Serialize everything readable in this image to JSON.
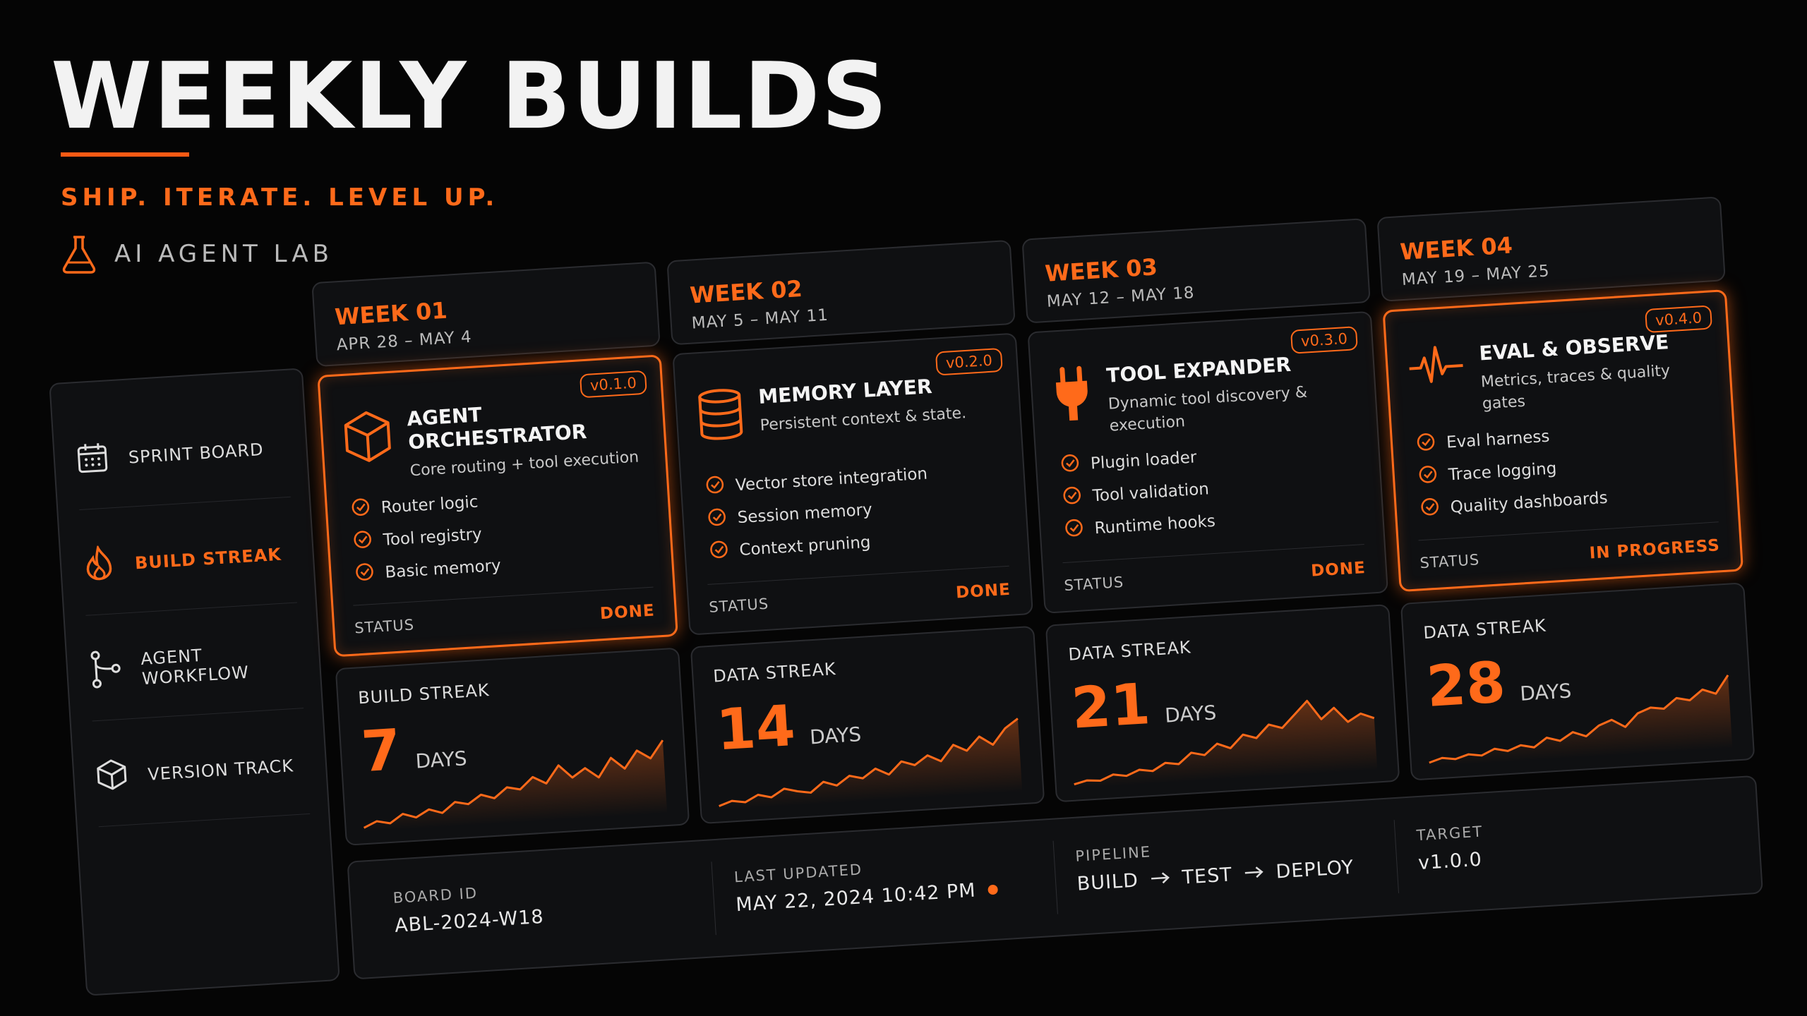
{
  "header": {
    "title": "WEEKLY BUILDS",
    "tagline": "SHIP. ITERATE. LEVEL UP.",
    "lab": "AI AGENT LAB"
  },
  "sidebar": {
    "items": [
      "SPRINT BOARD",
      "BUILD STREAK",
      "AGENT WORKFLOW",
      "VERSION TRACK"
    ],
    "active": 1
  },
  "weeks": [
    {
      "week": "WEEK 01",
      "dates": "APR 28 – MAY 4",
      "version": "v0.1.0",
      "title": "AGENT ORCHESTRATOR",
      "subtitle": "Core routing + tool execution",
      "checklist": [
        "Router logic",
        "Tool registry",
        "Basic memory"
      ],
      "status_label": "STATUS",
      "status": "DONE",
      "active": true,
      "streak_label": "BUILD STREAK",
      "streak_value": 7,
      "streak_unit": "DAYS",
      "trend": [
        10,
        14,
        12,
        18,
        15,
        20,
        17,
        24,
        22,
        28,
        25,
        32,
        30,
        38,
        33,
        45,
        36,
        42,
        35,
        48,
        40,
        52,
        46,
        58
      ]
    },
    {
      "week": "WEEK 02",
      "dates": "MAY 5 – MAY 11",
      "version": "v0.2.0",
      "title": "MEMORY LAYER",
      "subtitle": "Persistent context & state.",
      "checklist": [
        "Vector store integration",
        "Session memory",
        "Context pruning"
      ],
      "status_label": "STATUS",
      "status": "DONE",
      "active": false,
      "streak_label": "DATA STREAK",
      "streak_value": 14,
      "streak_unit": "DAYS",
      "trend": [
        8,
        12,
        10,
        16,
        13,
        20,
        17,
        15,
        24,
        20,
        28,
        25,
        33,
        27,
        38,
        34,
        42,
        36,
        50,
        44,
        56,
        48,
        62,
        70
      ]
    },
    {
      "week": "WEEK 03",
      "dates": "MAY 12 – MAY 18",
      "version": "v0.3.0",
      "title": "TOOL EXPANDER",
      "subtitle": "Dynamic tool discovery & execution",
      "checklist": [
        "Plugin loader",
        "Tool validation",
        "Runtime hooks"
      ],
      "status_label": "STATUS",
      "status": "DONE",
      "active": false,
      "streak_label": "DATA STREAK",
      "streak_value": 21,
      "streak_unit": "DAYS",
      "trend": [
        5,
        8,
        7,
        12,
        10,
        15,
        13,
        20,
        18,
        28,
        25,
        35,
        30,
        42,
        38,
        50,
        46,
        58,
        70,
        52,
        62,
        48,
        55,
        50
      ]
    },
    {
      "week": "WEEK 04",
      "dates": "MAY 19 – MAY 25",
      "version": "v0.4.0",
      "title": "EVAL & OBSERVE",
      "subtitle": "Metrics, traces & quality gates",
      "checklist": [
        "Eval harness",
        "Trace logging",
        "Quality dashboards"
      ],
      "status_label": "STATUS",
      "status": "IN PROGRESS",
      "active": true,
      "streak_label": "DATA STREAK",
      "streak_value": 28,
      "streak_unit": "DAYS",
      "trend": [
        8,
        12,
        10,
        14,
        12,
        18,
        15,
        20,
        17,
        26,
        22,
        30,
        25,
        35,
        40,
        32,
        45,
        50,
        48,
        58,
        55,
        65,
        60,
        78
      ]
    }
  ],
  "footer": {
    "board_id_label": "BOARD ID",
    "board_id": "ABL-2024-W18",
    "updated_label": "LAST UPDATED",
    "updated": "MAY 22, 2024 10:42 PM",
    "pipeline_label": "PIPELINE",
    "pipeline": [
      "BUILD",
      "TEST",
      "DEPLOY"
    ],
    "target_label": "TARGET",
    "target": "v1.0.0"
  }
}
